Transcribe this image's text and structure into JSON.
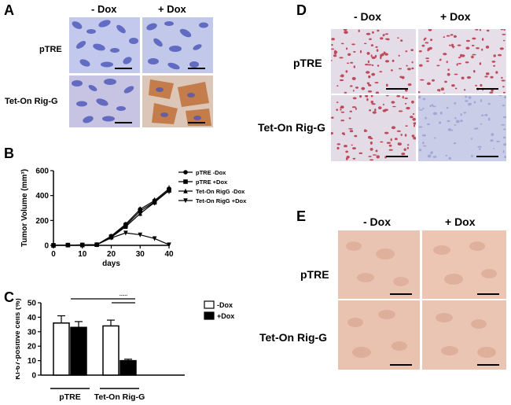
{
  "panels": {
    "A": {
      "letter": "A",
      "col_labels": [
        "- Dox",
        "+ Dox"
      ],
      "row_labels": [
        "pTRE",
        "Tet-On Rig-G"
      ]
    },
    "B": {
      "letter": "B"
    },
    "C": {
      "letter": "C"
    },
    "D": {
      "letter": "D",
      "col_labels": [
        "- Dox",
        "+ Dox"
      ],
      "row_labels": [
        "pTRE",
        "Tet-On Rig-G"
      ]
    },
    "E": {
      "letter": "E",
      "col_labels": [
        "- Dox",
        "+ Dox"
      ],
      "row_labels": [
        "pTRE",
        "Tet-On Rig-G"
      ]
    }
  },
  "chart_data": [
    {
      "type": "line",
      "panel": "B",
      "xlabel": "days",
      "ylabel": "Tumor Volume (mm³)",
      "x_ticks": [
        0,
        10,
        20,
        30,
        40
      ],
      "y_ticks": [
        0,
        200,
        400,
        600
      ],
      "xlim": [
        0,
        40
      ],
      "ylim": [
        0,
        600
      ],
      "x": [
        0,
        5,
        10,
        15,
        20,
        25,
        30,
        35,
        40
      ],
      "series": [
        {
          "name": "pTRE -Dox",
          "marker": "circle",
          "values": [
            0,
            2,
            3,
            5,
            75,
            170,
            290,
            360,
            455
          ]
        },
        {
          "name": "pTRE +Dox",
          "marker": "square",
          "values": [
            0,
            2,
            3,
            5,
            70,
            160,
            275,
            350,
            445
          ]
        },
        {
          "name": "Tet-On RigG -Dox",
          "marker": "triangle-up",
          "values": [
            0,
            2,
            3,
            5,
            65,
            150,
            255,
            345,
            440
          ]
        },
        {
          "name": "Tet-On RigG +Dox",
          "marker": "triangle-down",
          "values": [
            0,
            2,
            3,
            5,
            60,
            100,
            85,
            55,
            5
          ]
        }
      ]
    },
    {
      "type": "bar",
      "panel": "C",
      "ylabel": "Ki-67-positive cells (%)",
      "y_ticks": [
        0,
        10,
        20,
        30,
        40,
        50
      ],
      "ylim": [
        0,
        50
      ],
      "groups": [
        "pTRE",
        "Tet-On Rig-G"
      ],
      "series": [
        {
          "name": "-Dox",
          "fill": "#ffffff",
          "values": [
            36,
            34
          ],
          "errors": [
            5,
            4
          ]
        },
        {
          "name": "+Dox",
          "fill": "#000000",
          "values": [
            33,
            10
          ],
          "errors": [
            4,
            1
          ]
        }
      ],
      "significance": "***"
    }
  ],
  "colors": {
    "hema_bg": "#b7bfe6",
    "hema_cell": "#4454b5",
    "dab": "#b86a36",
    "pink_bg": "#ebc0ad",
    "red_nuclei": "#b3283a"
  }
}
